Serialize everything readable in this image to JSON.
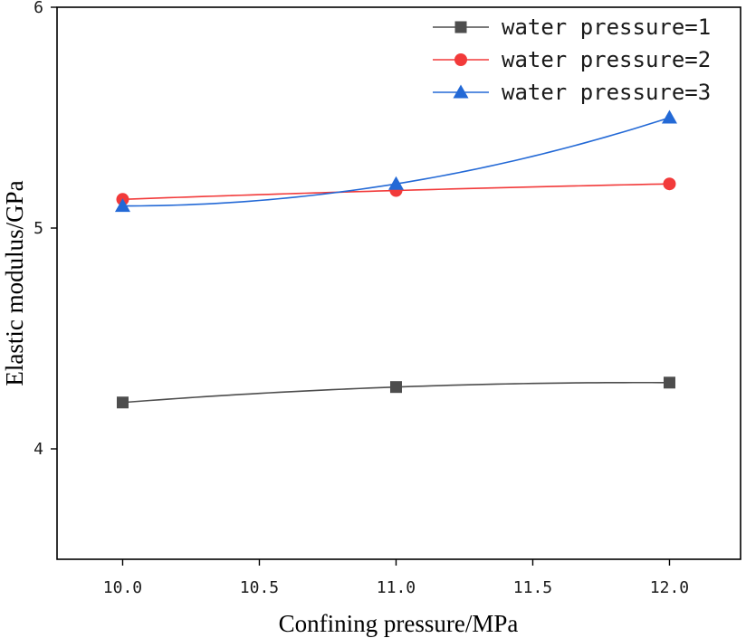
{
  "chart_data": {
    "type": "line",
    "title": "",
    "xlabel": "Confining pressure/MPa",
    "ylabel": "Elastic modulus/GPa",
    "xlim": [
      9.76,
      12.26
    ],
    "ylim": [
      3.5,
      6.0
    ],
    "x_ticks": [
      10.0,
      10.5,
      11.0,
      11.5,
      12.0
    ],
    "x_tick_labels": [
      "10.0",
      "10.5",
      "11.0",
      "11.5",
      "12.0"
    ],
    "y_ticks": [
      4,
      5,
      6
    ],
    "y_tick_labels": [
      "4",
      "5",
      "6"
    ],
    "grid": false,
    "legend_position": "top-right",
    "x": [
      10.0,
      11.0,
      12.0
    ],
    "series": [
      {
        "name": "water pressure=1",
        "values": [
          4.21,
          4.28,
          4.3
        ],
        "color": "#4d4d4d",
        "marker": "square"
      },
      {
        "name": "water pressure=2",
        "values": [
          5.13,
          5.17,
          5.2
        ],
        "color": "#f23a3a",
        "marker": "circle"
      },
      {
        "name": "water pressure=3",
        "values": [
          5.1,
          5.2,
          5.5
        ],
        "color": "#2369d6",
        "marker": "triangle"
      }
    ]
  }
}
